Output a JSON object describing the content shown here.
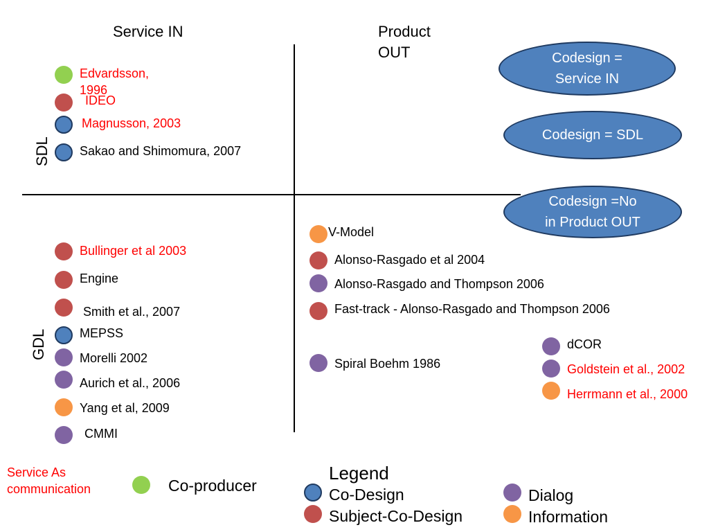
{
  "headers": {
    "service_in": "Service IN",
    "product_out_line1": "Product",
    "product_out_line2": "OUT",
    "sdl": "SDL",
    "gdl": "GDL"
  },
  "ellipses": [
    {
      "line1": "Codesign =",
      "line2": "Service IN"
    },
    {
      "line1": "Codesign = SDL",
      "line2": ""
    },
    {
      "line1": "Codesign =No",
      "line2": "in Product OUT"
    }
  ],
  "items": {
    "edvardsson_line1": "Edvardsson,",
    "edvardsson_line2": "1996",
    "ideo": "IDEO",
    "magnusson": "Magnusson, 2003",
    "sakao": "Sakao and Shimomura, 2007",
    "bullinger": "Bullinger et al 2003",
    "engine": "Engine",
    "smith": "Smith et al., 2007",
    "mepss": "MEPSS",
    "morelli": "Morelli 2002",
    "aurich": "Aurich et al., 2006",
    "yang": "Yang et al, 2009",
    "cmmi": "CMMI",
    "vmodel": "V-Model",
    "alonso2004": "Alonso-Rasgado et al 2004",
    "alonso2006": "Alonso-Rasgado and Thompson 2006",
    "fasttrack": "Fast-track  - Alonso-Rasgado and Thompson 2006",
    "spiral": "Spiral Boehm 1986",
    "dcor": "dCOR",
    "goldstein": "Goldstein et al., 2002",
    "herrmann": "Herrmann et al., 2000"
  },
  "service_as_communication": {
    "line1": "Service  As",
    "line2": "communication"
  },
  "legend": {
    "title": "Legend",
    "co_producer": "Co-producer",
    "co_design": "Co-Design",
    "subject_co_design": "Subject-Co-Design",
    "dialog": "Dialog",
    "information": "Information"
  },
  "colors": {
    "co_producer": "#92d050",
    "co_design": "#4f81bd",
    "subject_co_design": "#c0504d",
    "dialog": "#8064a2",
    "information": "#f79646",
    "highlight_text": "#ff0000"
  }
}
